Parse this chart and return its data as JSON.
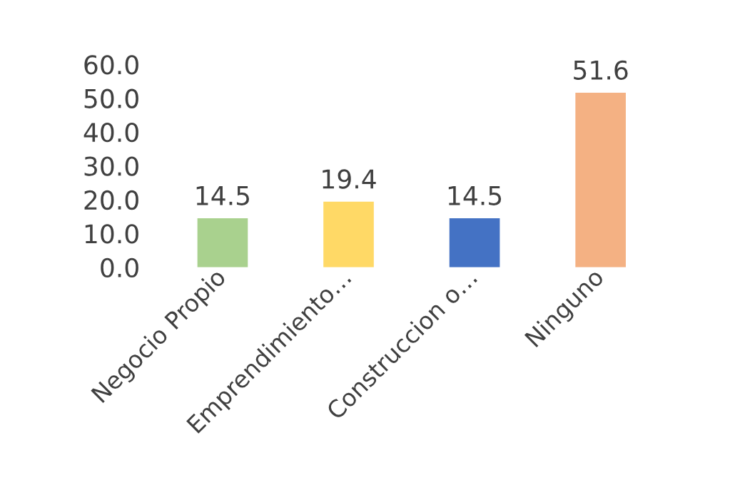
{
  "chart_data": {
    "type": "bar",
    "categories": [
      "Negocio Propio",
      "Emprendimiento…",
      "Construccion o…",
      "Ninguno"
    ],
    "values": [
      14.5,
      19.4,
      14.5,
      51.6
    ],
    "colors": [
      "#a9d18e",
      "#ffd966",
      "#4472c4",
      "#f4b183"
    ],
    "ylim": [
      0,
      60
    ],
    "yticks": [
      {
        "value": 0,
        "label": "0.0"
      },
      {
        "value": 10,
        "label": "10.0"
      },
      {
        "value": 20,
        "label": "20.0"
      },
      {
        "value": 30,
        "label": "30.0"
      },
      {
        "value": 40,
        "label": "40.0"
      },
      {
        "value": 50,
        "label": "50.0"
      },
      {
        "value": 60,
        "label": "60.0"
      }
    ],
    "data_labels": true,
    "grid": false,
    "legend": false
  }
}
